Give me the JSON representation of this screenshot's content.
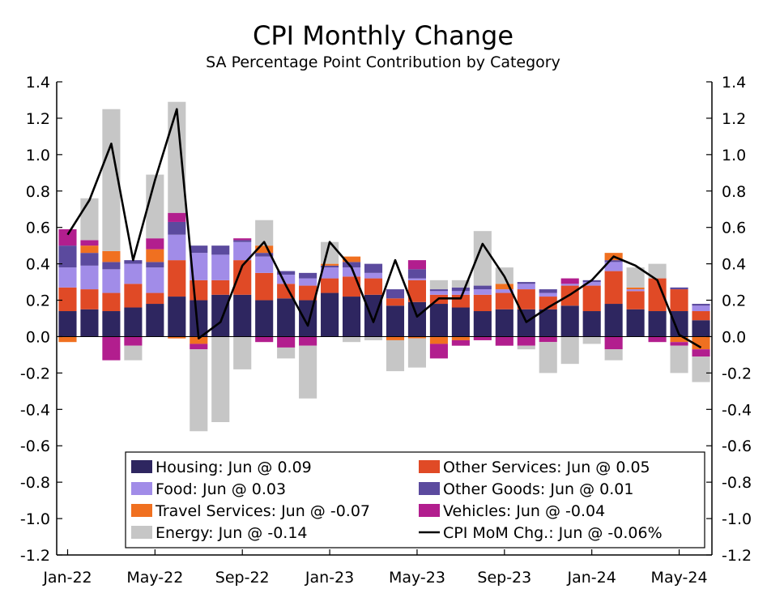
{
  "chart_data": {
    "type": "bar",
    "stacked": true,
    "title": "CPI Monthly Change",
    "subtitle": "SA Percentage Point Contribution by Category",
    "ylim": [
      -1.2,
      1.4
    ],
    "y_ticks": [
      "1.4",
      "1.2",
      "1.0",
      "0.8",
      "0.6",
      "0.4",
      "0.2",
      "0.0",
      "-0.2",
      "-0.4",
      "-0.6",
      "-0.8",
      "-1.0",
      "-1.2"
    ],
    "y_tick_values": [
      1.4,
      1.2,
      1.0,
      0.8,
      0.6,
      0.4,
      0.2,
      0.0,
      -0.2,
      -0.4,
      -0.6,
      -0.8,
      -1.0,
      -1.2
    ],
    "x_tick_labels": [
      "Jan-22",
      "May-22",
      "Sep-22",
      "Jan-23",
      "May-23",
      "Sep-23",
      "Jan-24",
      "May-24"
    ],
    "x_tick_indices": [
      0,
      4,
      8,
      12,
      16,
      20,
      24,
      28
    ],
    "categories": [
      "Jan-22",
      "Feb-22",
      "Mar-22",
      "Apr-22",
      "May-22",
      "Jun-22",
      "Jul-22",
      "Aug-22",
      "Sep-22",
      "Oct-22",
      "Nov-22",
      "Dec-22",
      "Jan-23",
      "Feb-23",
      "Mar-23",
      "Apr-23",
      "May-23",
      "Jun-23",
      "Jul-23",
      "Aug-23",
      "Sep-23",
      "Oct-23",
      "Nov-23",
      "Dec-23",
      "Jan-24",
      "Feb-24",
      "Mar-24",
      "Apr-24",
      "May-24",
      "Jun-24"
    ],
    "legend_position": "bottom-right inside",
    "series": [
      {
        "name": "Housing",
        "color": "#2e2660",
        "legend": "Housing: Jun @ 0.09",
        "values": [
          0.14,
          0.15,
          0.14,
          0.16,
          0.18,
          0.22,
          0.2,
          0.23,
          0.23,
          0.2,
          0.21,
          0.2,
          0.24,
          0.22,
          0.23,
          0.17,
          0.19,
          0.18,
          0.16,
          0.14,
          0.15,
          0.15,
          0.15,
          0.17,
          0.14,
          0.18,
          0.15,
          0.14,
          0.14,
          0.09
        ]
      },
      {
        "name": "Other Services",
        "color": "#e04a26",
        "legend": "Other Services: Jun @ 0.05",
        "values": [
          0.13,
          0.11,
          0.1,
          0.13,
          0.06,
          0.2,
          0.11,
          0.08,
          0.19,
          0.15,
          0.08,
          0.08,
          0.08,
          0.11,
          0.09,
          0.04,
          0.12,
          0.05,
          0.07,
          0.09,
          0.09,
          0.11,
          0.07,
          0.11,
          0.14,
          0.18,
          0.1,
          0.18,
          0.12,
          0.05
        ]
      },
      {
        "name": "Food",
        "color": "#a18ce8",
        "legend": "Food: Jun @ 0.03",
        "values": [
          0.11,
          0.13,
          0.13,
          0.11,
          0.14,
          0.14,
          0.15,
          0.14,
          0.1,
          0.09,
          0.05,
          0.04,
          0.06,
          0.05,
          0.03,
          0.0,
          0.01,
          0.02,
          0.02,
          0.03,
          0.02,
          0.03,
          0.02,
          0.01,
          0.02,
          0.05,
          0.01,
          0.0,
          0.0,
          0.03
        ]
      },
      {
        "name": "Other Goods",
        "color": "#5b4a9e",
        "legend": "Other Goods: Jun @ 0.01",
        "values": [
          0.12,
          0.07,
          0.04,
          0.02,
          0.03,
          0.07,
          0.04,
          0.05,
          0.01,
          0.02,
          0.02,
          0.03,
          0.01,
          0.03,
          0.05,
          0.05,
          0.05,
          0.01,
          0.02,
          0.02,
          0.0,
          0.01,
          0.02,
          0.0,
          0.01,
          0.01,
          0.0,
          0.0,
          0.01,
          0.01
        ]
      },
      {
        "name": "Travel Services",
        "color": "#f07020",
        "legend": "Travel Services: Jun @ -0.07",
        "values": [
          -0.03,
          0.04,
          0.06,
          0.0,
          0.07,
          -0.01,
          -0.04,
          0.0,
          0.0,
          0.04,
          0.0,
          0.0,
          0.01,
          0.03,
          0.0,
          -0.02,
          -0.01,
          -0.04,
          -0.02,
          0.0,
          0.03,
          0.0,
          0.0,
          0.0,
          0.0,
          0.04,
          0.01,
          0.0,
          -0.03,
          -0.07
        ]
      },
      {
        "name": "Vehicles",
        "color": "#b21e8e",
        "legend": "Vehicles: Jun @ -0.04",
        "values": [
          0.09,
          0.03,
          -0.13,
          -0.05,
          0.06,
          0.05,
          -0.03,
          0.0,
          0.01,
          -0.03,
          -0.06,
          -0.05,
          0.0,
          0.0,
          0.0,
          0.0,
          0.05,
          -0.08,
          -0.03,
          -0.02,
          -0.05,
          -0.05,
          -0.03,
          0.03,
          0.0,
          -0.07,
          0.0,
          -0.03,
          -0.02,
          -0.04
        ]
      },
      {
        "name": "Energy",
        "color": "#c6c6c6",
        "legend": "Energy: Jun @ -0.14",
        "values": [
          0.0,
          0.23,
          0.78,
          -0.08,
          0.35,
          0.61,
          -0.45,
          -0.47,
          -0.18,
          0.14,
          -0.06,
          -0.29,
          0.12,
          -0.03,
          -0.02,
          -0.17,
          -0.16,
          0.05,
          0.04,
          0.3,
          0.09,
          -0.02,
          -0.17,
          -0.15,
          -0.04,
          -0.06,
          0.11,
          0.08,
          -0.15,
          -0.14
        ]
      }
    ],
    "line_series": {
      "name": "CPI MoM Chg.",
      "color": "#000000",
      "legend": "CPI MoM Chg.: Jun @ -0.06%",
      "values": [
        0.56,
        0.75,
        1.06,
        0.42,
        0.86,
        1.25,
        -0.01,
        0.08,
        0.39,
        0.52,
        0.28,
        0.06,
        0.52,
        0.38,
        0.08,
        0.42,
        0.11,
        0.21,
        0.21,
        0.51,
        0.33,
        0.08,
        0.16,
        0.23,
        0.31,
        0.44,
        0.39,
        0.31,
        0.01,
        -0.06
      ]
    }
  }
}
